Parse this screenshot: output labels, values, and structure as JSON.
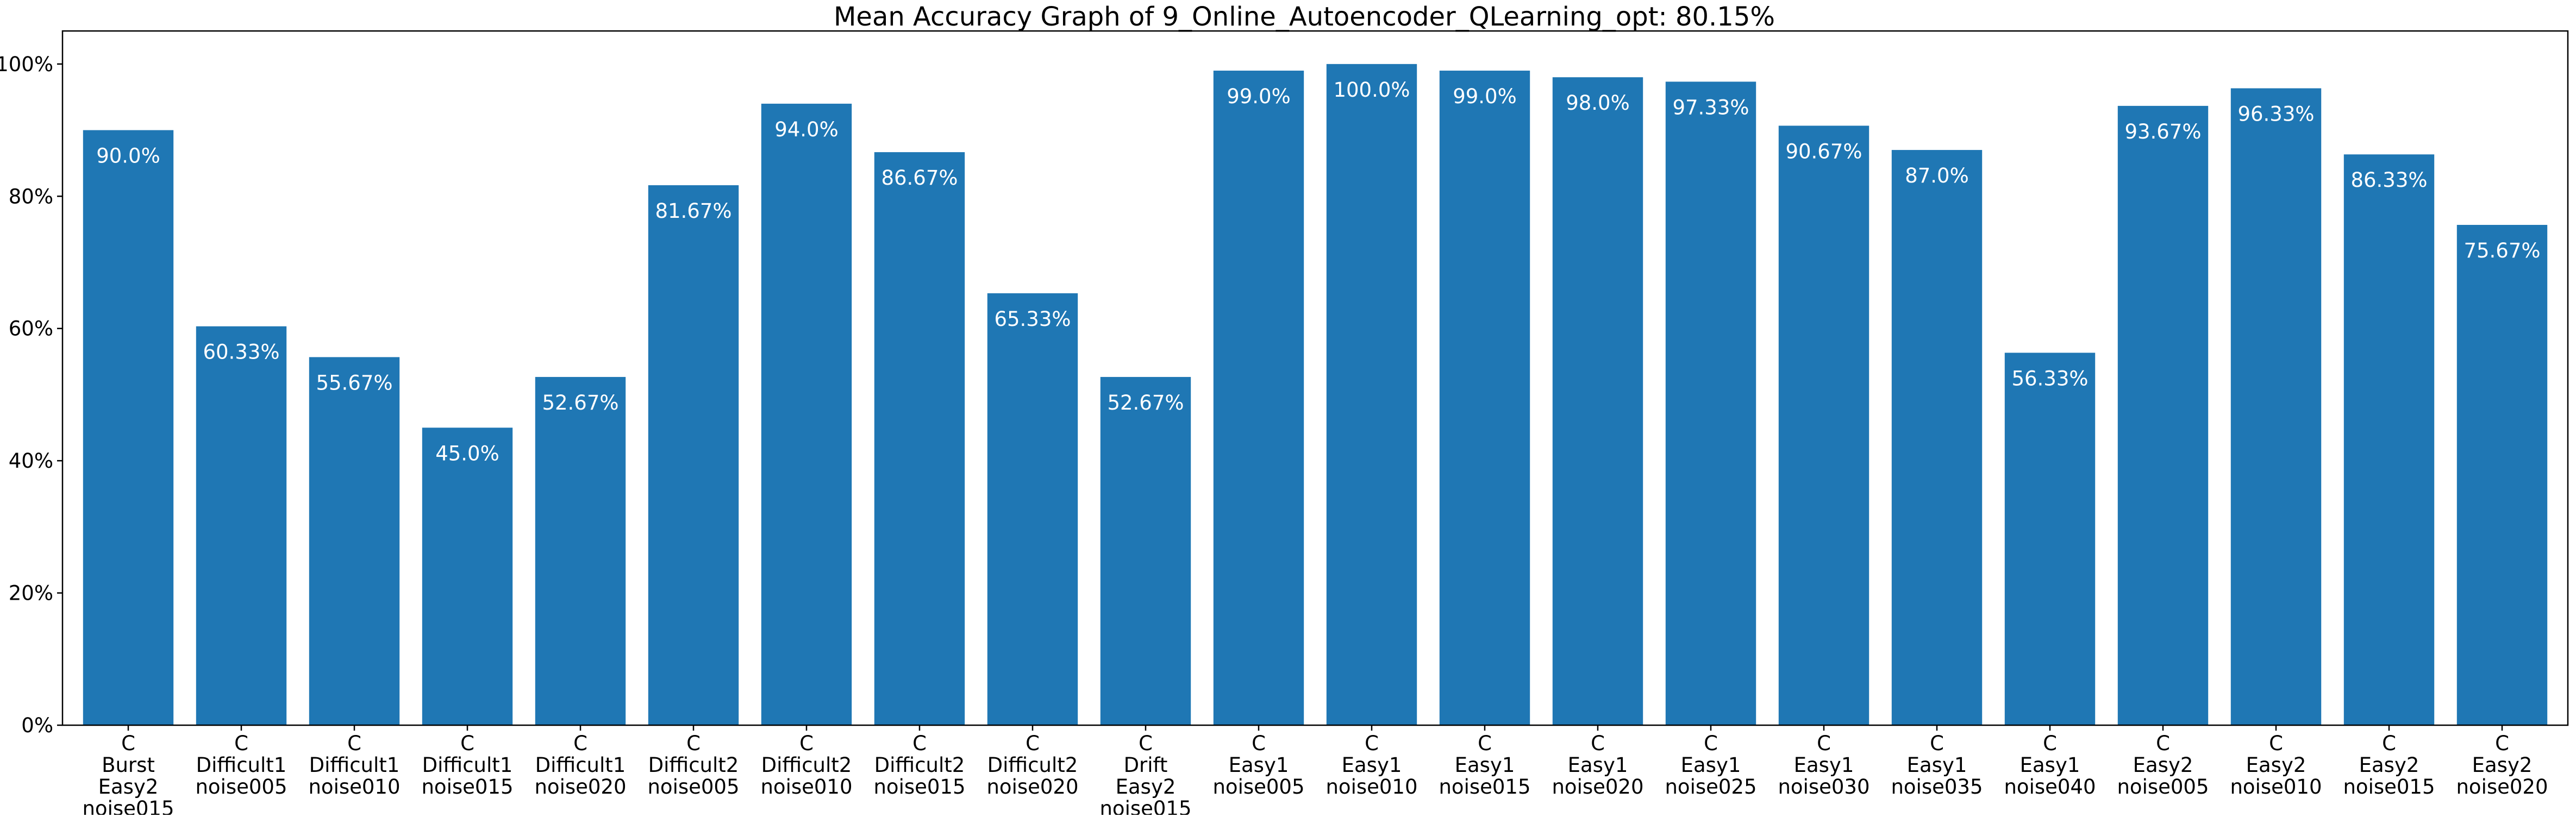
{
  "chart_data": {
    "type": "bar",
    "title": "Mean Accuracy Graph of 9_Online_Autoencoder_QLearning_opt: 80.15%",
    "xlabel": "",
    "ylabel": "",
    "ylim": [
      0,
      105
    ],
    "y_ticks": [
      "0%",
      "20%",
      "40%",
      "60%",
      "80%",
      "100%"
    ],
    "y_tick_values": [
      0,
      20,
      40,
      60,
      80,
      100
    ],
    "bar_color": "#1f77b4",
    "bar_label_color": "#ffffff",
    "grid": false,
    "categories": [
      [
        "C",
        "Burst",
        "Easy2",
        "noise015"
      ],
      [
        "C",
        "Difficult1",
        "noise005"
      ],
      [
        "C",
        "Difficult1",
        "noise010"
      ],
      [
        "C",
        "Difficult1",
        "noise015"
      ],
      [
        "C",
        "Difficult1",
        "noise020"
      ],
      [
        "C",
        "Difficult2",
        "noise005"
      ],
      [
        "C",
        "Difficult2",
        "noise010"
      ],
      [
        "C",
        "Difficult2",
        "noise015"
      ],
      [
        "C",
        "Difficult2",
        "noise020"
      ],
      [
        "C",
        "Drift",
        "Easy2",
        "noise015"
      ],
      [
        "C",
        "Easy1",
        "noise005"
      ],
      [
        "C",
        "Easy1",
        "noise010"
      ],
      [
        "C",
        "Easy1",
        "noise015"
      ],
      [
        "C",
        "Easy1",
        "noise020"
      ],
      [
        "C",
        "Easy1",
        "noise025"
      ],
      [
        "C",
        "Easy1",
        "noise030"
      ],
      [
        "C",
        "Easy1",
        "noise035"
      ],
      [
        "C",
        "Easy1",
        "noise040"
      ],
      [
        "C",
        "Easy2",
        "noise005"
      ],
      [
        "C",
        "Easy2",
        "noise010"
      ],
      [
        "C",
        "Easy2",
        "noise015"
      ],
      [
        "C",
        "Easy2",
        "noise020"
      ]
    ],
    "values": [
      90.0,
      60.33,
      55.67,
      45.0,
      52.67,
      81.67,
      94.0,
      86.67,
      65.33,
      52.67,
      99.0,
      100.0,
      99.0,
      98.0,
      97.33,
      90.67,
      87.0,
      56.33,
      93.67,
      96.33,
      86.33,
      75.67
    ],
    "value_labels": [
      "90.0%",
      "60.33%",
      "55.67%",
      "45.0%",
      "52.67%",
      "81.67%",
      "94.0%",
      "86.67%",
      "65.33%",
      "52.67%",
      "99.0%",
      "100.0%",
      "99.0%",
      "98.0%",
      "97.33%",
      "90.67%",
      "87.0%",
      "56.33%",
      "93.67%",
      "96.33%",
      "86.33%",
      "75.67%"
    ]
  }
}
